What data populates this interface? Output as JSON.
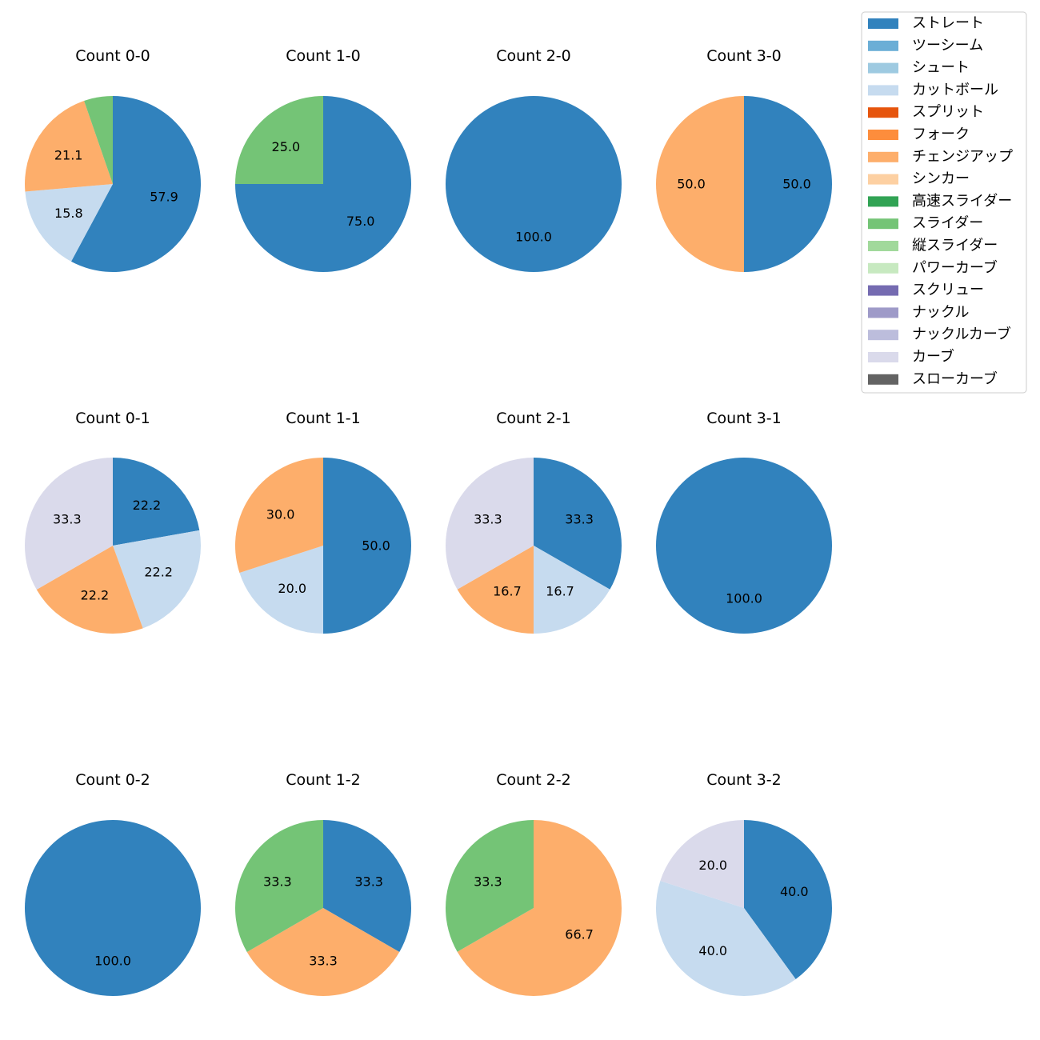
{
  "chart_data": {
    "type": "pie",
    "legend": {
      "placement": "top-right",
      "entries": [
        {
          "name": "ストレート",
          "color": "#3182bd"
        },
        {
          "name": "ツーシーム",
          "color": "#6baed6"
        },
        {
          "name": "シュート",
          "color": "#9ecae1"
        },
        {
          "name": "カットボール",
          "color": "#c6dbef"
        },
        {
          "name": "スプリット",
          "color": "#e6550d"
        },
        {
          "name": "フォーク",
          "color": "#fd8d3c"
        },
        {
          "name": "チェンジアップ",
          "color": "#fdae6b"
        },
        {
          "name": "シンカー",
          "color": "#fdd0a2"
        },
        {
          "name": "高速スライダー",
          "color": "#31a354"
        },
        {
          "name": "スライダー",
          "color": "#74c476"
        },
        {
          "name": "縦スライダー",
          "color": "#a1d99b"
        },
        {
          "name": "パワーカーブ",
          "color": "#c7e9c0"
        },
        {
          "name": "スクリュー",
          "color": "#756bb1"
        },
        {
          "name": "ナックル",
          "color": "#9e9ac8"
        },
        {
          "name": "ナックルカーブ",
          "color": "#bcbddc"
        },
        {
          "name": "カーブ",
          "color": "#dadaeb"
        },
        {
          "name": "スローカーブ",
          "color": "#636363"
        }
      ]
    },
    "pies": [
      {
        "title": "Count 0-0",
        "slices": [
          {
            "pitch": "ストレート",
            "value": 57.9,
            "label": "57.9"
          },
          {
            "pitch": "カットボール",
            "value": 15.8,
            "label": "15.8"
          },
          {
            "pitch": "チェンジアップ",
            "value": 21.1,
            "label": "21.1"
          },
          {
            "pitch": "スライダー",
            "value": 5.3,
            "label": ""
          }
        ]
      },
      {
        "title": "Count 1-0",
        "slices": [
          {
            "pitch": "ストレート",
            "value": 75.0,
            "label": "75.0"
          },
          {
            "pitch": "スライダー",
            "value": 25.0,
            "label": "25.0"
          }
        ]
      },
      {
        "title": "Count 2-0",
        "slices": [
          {
            "pitch": "ストレート",
            "value": 100.0,
            "label": "100.0"
          }
        ]
      },
      {
        "title": "Count 3-0",
        "slices": [
          {
            "pitch": "ストレート",
            "value": 50.0,
            "label": "50.0"
          },
          {
            "pitch": "チェンジアップ",
            "value": 50.0,
            "label": "50.0"
          }
        ]
      },
      {
        "title": "Count 0-1",
        "slices": [
          {
            "pitch": "ストレート",
            "value": 22.2,
            "label": "22.2"
          },
          {
            "pitch": "カットボール",
            "value": 22.2,
            "label": "22.2"
          },
          {
            "pitch": "チェンジアップ",
            "value": 22.2,
            "label": "22.2"
          },
          {
            "pitch": "カーブ",
            "value": 33.3,
            "label": "33.3"
          }
        ]
      },
      {
        "title": "Count 1-1",
        "slices": [
          {
            "pitch": "ストレート",
            "value": 50.0,
            "label": "50.0"
          },
          {
            "pitch": "カットボール",
            "value": 20.0,
            "label": "20.0"
          },
          {
            "pitch": "チェンジアップ",
            "value": 30.0,
            "label": "30.0"
          }
        ]
      },
      {
        "title": "Count 2-1",
        "slices": [
          {
            "pitch": "ストレート",
            "value": 33.3,
            "label": "33.3"
          },
          {
            "pitch": "カットボール",
            "value": 16.7,
            "label": "16.7"
          },
          {
            "pitch": "チェンジアップ",
            "value": 16.7,
            "label": "16.7"
          },
          {
            "pitch": "カーブ",
            "value": 33.3,
            "label": "33.3"
          }
        ]
      },
      {
        "title": "Count 3-1",
        "slices": [
          {
            "pitch": "ストレート",
            "value": 100.0,
            "label": "100.0"
          }
        ]
      },
      {
        "title": "Count 0-2",
        "slices": [
          {
            "pitch": "ストレート",
            "value": 100.0,
            "label": "100.0"
          }
        ]
      },
      {
        "title": "Count 1-2",
        "slices": [
          {
            "pitch": "ストレート",
            "value": 33.3,
            "label": "33.3"
          },
          {
            "pitch": "チェンジアップ",
            "value": 33.3,
            "label": "33.3"
          },
          {
            "pitch": "スライダー",
            "value": 33.3,
            "label": "33.3"
          }
        ]
      },
      {
        "title": "Count 2-2",
        "slices": [
          {
            "pitch": "チェンジアップ",
            "value": 66.7,
            "label": "66.7"
          },
          {
            "pitch": "スライダー",
            "value": 33.3,
            "label": "33.3"
          }
        ]
      },
      {
        "title": "Count 3-2",
        "slices": [
          {
            "pitch": "ストレート",
            "value": 40.0,
            "label": "40.0"
          },
          {
            "pitch": "カットボール",
            "value": 40.0,
            "label": "40.0"
          },
          {
            "pitch": "カーブ",
            "value": 20.0,
            "label": "20.0"
          }
        ]
      }
    ]
  }
}
